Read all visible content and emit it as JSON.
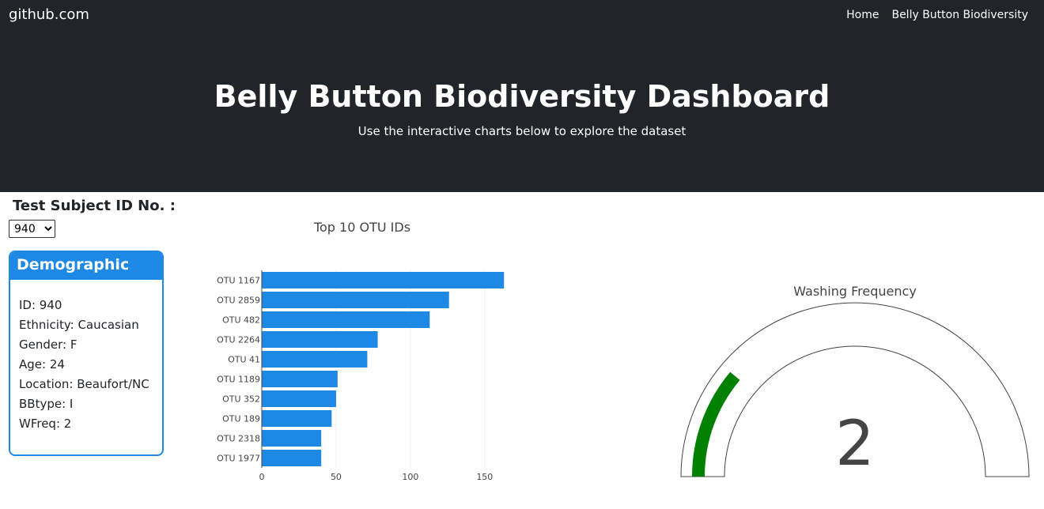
{
  "navbar": {
    "brand": "github.com",
    "links": [
      "Home",
      "Belly Button Biodiversity"
    ]
  },
  "hero": {
    "title": "Belly Button Biodiversity Dashboard",
    "subtitle": "Use the interactive charts below to explore the dataset"
  },
  "selector": {
    "label": "Test Subject ID No. :",
    "selected": "940"
  },
  "demographics": {
    "heading": "Demographic Info",
    "lines": [
      "ID: 940",
      "Ethnicity: Caucasian",
      "Gender: F",
      "Age: 24",
      "Location: Beaufort/NC",
      "BBtype: I",
      "WFreq: 2"
    ]
  },
  "colors": {
    "bar": "#1e88e5",
    "gauge_fill": "#008000",
    "panel": "#1e88e5",
    "navbar": "#212529"
  },
  "chart_data": [
    {
      "type": "bar",
      "orientation": "horizontal",
      "title": "Top 10 OTU IDs",
      "categories": [
        "OTU 1167",
        "OTU 2859",
        "OTU 482",
        "OTU 2264",
        "OTU 41",
        "OTU 1189",
        "OTU 352",
        "OTU 189",
        "OTU 2318",
        "OTU 1977"
      ],
      "values": [
        163,
        126,
        113,
        78,
        71,
        51,
        50,
        47,
        40,
        40
      ],
      "xticks": [
        0,
        50,
        100,
        150
      ],
      "xlim": [
        0,
        165
      ],
      "grid": true
    },
    {
      "type": "gauge",
      "title": "Washing Frequency",
      "value": 2,
      "range": [
        0,
        9
      ]
    }
  ]
}
